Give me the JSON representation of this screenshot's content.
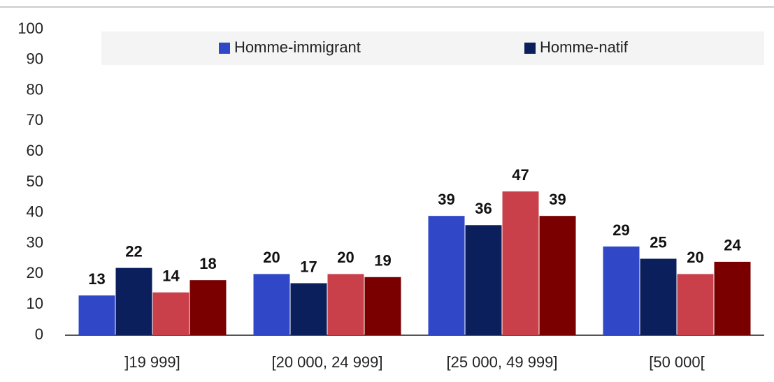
{
  "chart_data": {
    "type": "bar",
    "categories": [
      "]19 999]",
      "[20 000, 24 999]",
      "[25 000, 49 999]",
      "[50 000["
    ],
    "series": [
      {
        "name": "Homme-immigrant",
        "color": "#3048c8",
        "values": [
          13,
          20,
          39,
          29
        ]
      },
      {
        "name": "Homme-natif",
        "color": "#0a1f5c",
        "values": [
          22,
          17,
          36,
          25
        ]
      },
      {
        "color": "#c9404a",
        "values": [
          14,
          20,
          47,
          20
        ]
      },
      {
        "color": "#7a0000",
        "values": [
          18,
          19,
          39,
          24
        ]
      }
    ],
    "ylim": [
      0,
      100
    ],
    "yticks": [
      0,
      10,
      20,
      30,
      40,
      50,
      60,
      70,
      80,
      90,
      100
    ],
    "grid": false
  }
}
